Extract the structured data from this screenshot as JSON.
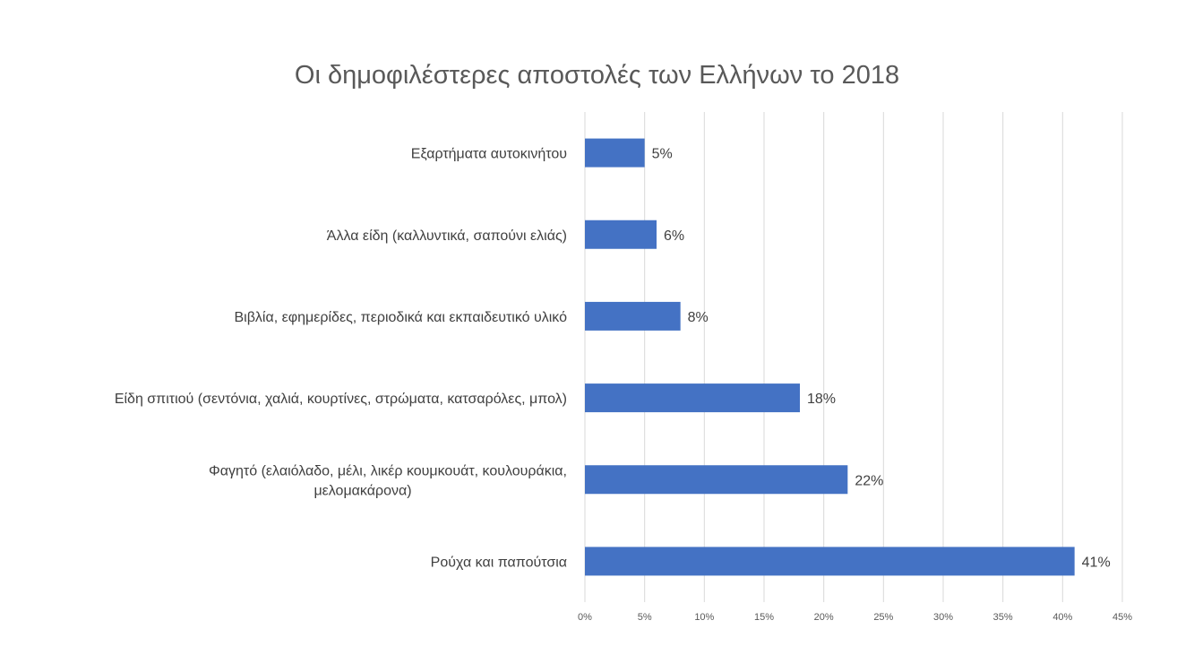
{
  "chart_data": {
    "type": "bar",
    "orientation": "horizontal",
    "title": "Οι δημοφιλέστερες αποστολές των Ελλήνων το 2018",
    "xlabel": "",
    "ylabel": "",
    "categories": [
      [
        "Εξαρτήματα αυτοκινήτου"
      ],
      [
        "Άλλα είδη (καλλυντικά, σαπούνι ελιάς)"
      ],
      [
        "Βιβλία, εφημερίδες, περιοδικά και εκπαιδευτικό υλικό"
      ],
      [
        "Είδη σπιτιού (σεντόνια, χαλιά, κουρτίνες, στρώματα, κατσαρόλες, μπολ)"
      ],
      [
        "Φαγητό (ελαιόλαδο, μέλι, λικέρ κουμκουάτ, κουλουράκια,",
        "μελομακάρονα)"
      ],
      [
        "Ρούχα και παπούτσια"
      ]
    ],
    "values": [
      5,
      6,
      8,
      18,
      22,
      41
    ],
    "data_labels": [
      "5%",
      "6%",
      "8%",
      "18%",
      "22%",
      "41%"
    ],
    "xlim": [
      0,
      45
    ],
    "ticks": [
      "0%",
      "5%",
      "10%",
      "15%",
      "20%",
      "25%",
      "30%",
      "35%",
      "40%",
      "45%"
    ],
    "grid": true,
    "bar_color": "#4472C4",
    "grid_color": "#D9D9D9"
  }
}
